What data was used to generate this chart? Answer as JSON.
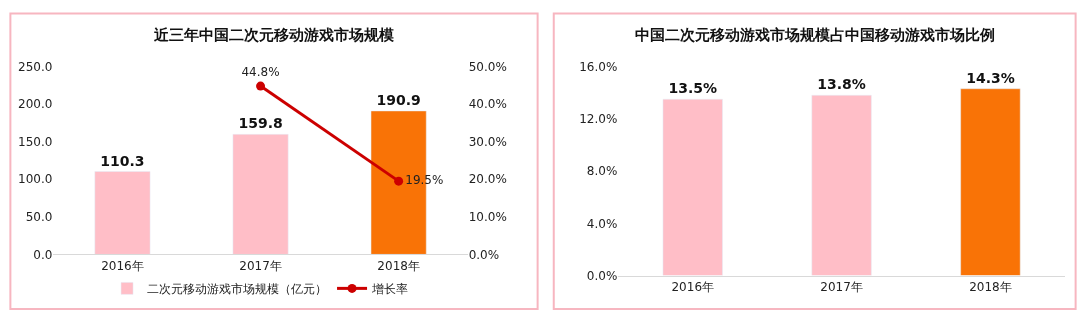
{
  "chart_data": [
    {
      "type": "bar",
      "title": "近三年中国二次元移动游戏市场规模",
      "categories": [
        "2016年",
        "2017年",
        "2018年"
      ],
      "series": [
        {
          "name": "二次元移动游戏市场规模（亿元）",
          "type": "bar",
          "colors": [
            "#ffbec7",
            "#ffbec7",
            "#f97306"
          ],
          "values": [
            110.3,
            159.8,
            190.9
          ],
          "value_labels": [
            "110.3",
            "159.8",
            "190.9"
          ]
        },
        {
          "name": "增长率",
          "type": "line",
          "axis": "y2",
          "color": "#cc0000",
          "marker": "circle",
          "values": [
            null,
            44.8,
            19.5
          ],
          "value_labels": [
            null,
            "44.8%",
            "19.5%"
          ]
        }
      ],
      "ylim": [
        0,
        250
      ],
      "yticks": [
        {
          "value": 0,
          "label": "0.0"
        },
        {
          "value": 50,
          "label": "50.0"
        },
        {
          "value": 100,
          "label": "100.0"
        },
        {
          "value": 150,
          "label": "150.0"
        },
        {
          "value": 200,
          "label": "200.0"
        },
        {
          "value": 250,
          "label": "250.0"
        }
      ],
      "y2lim": [
        0,
        50
      ],
      "y2ticks": [
        {
          "value": 0,
          "label": "0.0%"
        },
        {
          "value": 10,
          "label": "10.0%"
        },
        {
          "value": 20,
          "label": "20.0%"
        },
        {
          "value": 30,
          "label": "30.0%"
        },
        {
          "value": 40,
          "label": "40.0%"
        },
        {
          "value": 50,
          "label": "50.0%"
        }
      ],
      "legend": "bottom"
    },
    {
      "type": "bar",
      "title": "中国二次元移动游戏市场规模占中国移动游戏市场比例",
      "categories": [
        "2016年",
        "2017年",
        "2018年"
      ],
      "colors": [
        "#ffbec7",
        "#ffbec7",
        "#f97306"
      ],
      "values": [
        13.5,
        13.8,
        14.3
      ],
      "value_labels": [
        "13.5%",
        "13.8%",
        "14.3%"
      ],
      "ylim": [
        0,
        16
      ],
      "yticks": [
        {
          "value": 0,
          "label": "0.0%"
        },
        {
          "value": 4,
          "label": "4.0%"
        },
        {
          "value": 8,
          "label": "8.0%"
        },
        {
          "value": 12,
          "label": "12.0%"
        },
        {
          "value": 16,
          "label": "16.0%"
        }
      ],
      "legend": false
    }
  ]
}
